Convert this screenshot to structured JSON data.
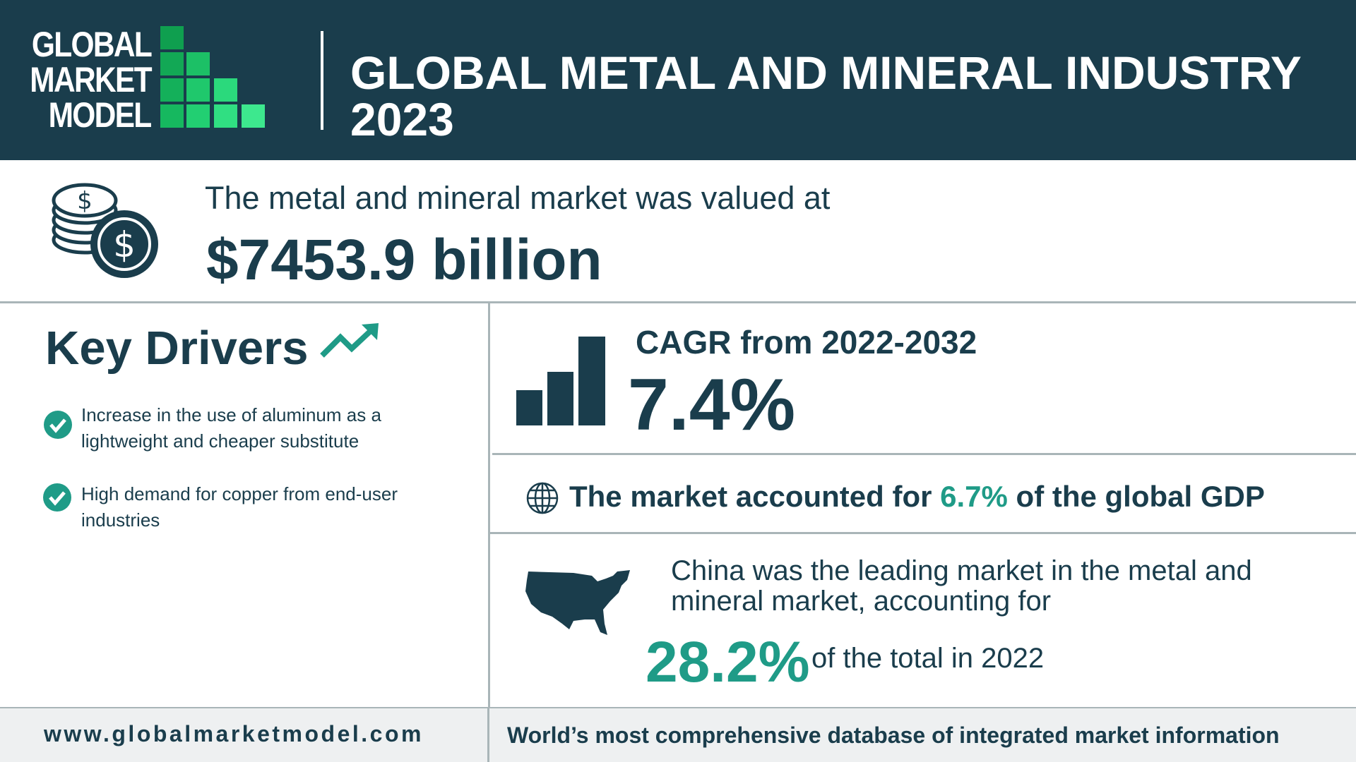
{
  "logo": {
    "lines": [
      "GLOBAL",
      "MARKET",
      "MODEL"
    ]
  },
  "header": {
    "title_lines": [
      "GLOBAL METAL AND MINERAL INDUSTRY",
      "2023"
    ]
  },
  "market": {
    "intro": "The metal and mineral market was valued at",
    "value": "$7453.9 billion"
  },
  "key_drivers": {
    "title": "Key Drivers",
    "items": [
      "Increase in the use of aluminum as a lightweight and cheaper substitute",
      "High demand for copper from end-user industries"
    ]
  },
  "cagr": {
    "label": "CAGR from 2022-2032",
    "value": "7.4%"
  },
  "gdp": {
    "before": "The market accounted for",
    "value": "6.7%",
    "after": "of the global GDP"
  },
  "region": {
    "text": "China was the leading market in the metal and mineral market, accounting for",
    "value": "28.2%",
    "after": "of the total in 2022"
  },
  "footer": {
    "website": "www.globalmarketmodel.com",
    "tagline": "World’s most comprehensive database of integrated market information"
  }
}
